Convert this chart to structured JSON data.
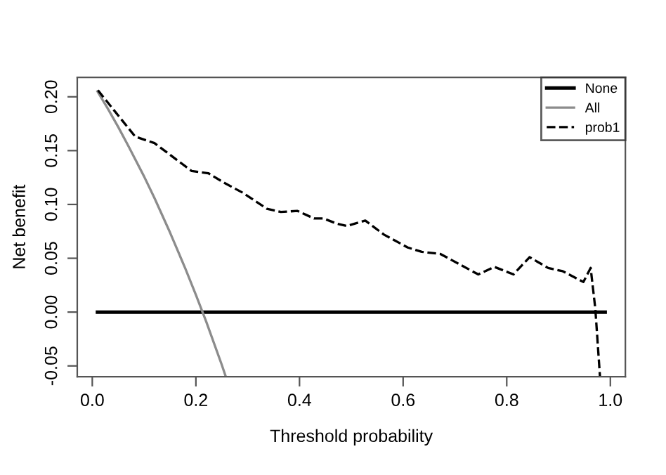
{
  "chart_data": {
    "type": "line",
    "xlabel": "Threshold probability",
    "ylabel": "Net benefit",
    "xlim": [
      -0.029,
      1.029
    ],
    "ylim": [
      -0.06,
      0.218
    ],
    "xticks": [
      {
        "value": 0,
        "label": "0.0"
      },
      0.2,
      0.4,
      0.6,
      0.8,
      {
        "value": 1,
        "label": "1.0"
      }
    ],
    "yticks": [
      -0.05,
      {
        "value": 0,
        "label": "0.00"
      },
      0.05,
      {
        "value": 0.1,
        "label": "0.10"
      },
      0.15,
      {
        "value": 0.2,
        "label": "0.20"
      }
    ],
    "legend": "top right",
    "grid": false,
    "marker": "none",
    "series": [
      {
        "name": "None",
        "color": "#000000",
        "line_style": "solid",
        "x": [
          0.01,
          0.99
        ],
        "values": [
          0,
          0
        ]
      },
      {
        "name": "All",
        "color": "#8c8c8c",
        "line_style": "solid",
        "x": [
          0.01,
          0.03,
          0.05,
          0.07,
          0.1,
          0.12,
          0.15,
          0.18,
          0.2,
          0.22,
          0.25,
          0.257
        ],
        "values": [
          0.205,
          0.189,
          0.172,
          0.154,
          0.126,
          0.106,
          0.074,
          0.04,
          0.016,
          -0.009,
          -0.049,
          -0.059
        ]
      },
      {
        "name": "prob1",
        "color": "#000000",
        "line_style": "dashed",
        "x": [
          0.011,
          0.083,
          0.12,
          0.192,
          0.224,
          0.255,
          0.29,
          0.337,
          0.364,
          0.396,
          0.428,
          0.446,
          0.473,
          0.491,
          0.527,
          0.563,
          0.609,
          0.636,
          0.672,
          0.745,
          0.776,
          0.813,
          0.844,
          0.88,
          0.908,
          0.948,
          0.962,
          0.971,
          0.98
        ],
        "values": [
          0.206,
          0.163,
          0.157,
          0.131,
          0.129,
          0.12,
          0.111,
          0.096,
          0.093,
          0.094,
          0.087,
          0.087,
          0.082,
          0.08,
          0.085,
          0.072,
          0.06,
          0.056,
          0.054,
          0.035,
          0.042,
          0.035,
          0.051,
          0.041,
          0.038,
          0.028,
          0.041,
          0.003,
          -0.06
        ]
      }
    ]
  }
}
